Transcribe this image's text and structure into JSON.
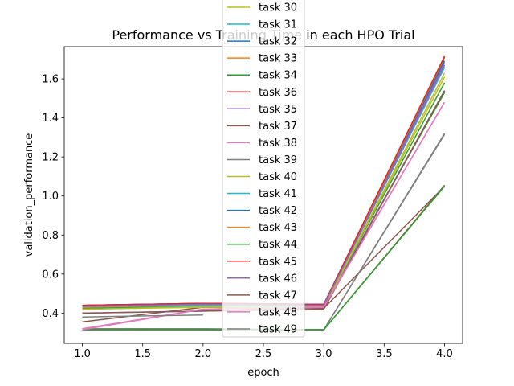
{
  "chart_data": {
    "type": "line",
    "title": "Performance vs Training Time in each HPO Trial",
    "xlabel": "epoch",
    "ylabel": "validation_performance",
    "xlim": [
      0.85,
      4.15
    ],
    "ylim": [
      0.245,
      1.765
    ],
    "xticks": [
      "1.0",
      "1.5",
      "2.0",
      "2.5",
      "3.0",
      "3.5",
      "4.0"
    ],
    "yticks": [
      "0.4",
      "0.6",
      "0.8",
      "1.0",
      "1.2",
      "1.4",
      "1.6"
    ],
    "grid": false,
    "legend_position": "top-center",
    "x": [
      1,
      2,
      3,
      4
    ],
    "series": [
      {
        "name": "task 30",
        "color": "#bcbd22",
        "values": [
          0.42,
          0.435,
          0.43,
          1.63
        ]
      },
      {
        "name": "task 31",
        "color": "#17becf",
        "values": [
          0.43,
          0.44,
          0.44,
          1.66
        ]
      },
      {
        "name": "task 32",
        "color": "#1f77b4",
        "values": [
          0.44,
          0.45,
          0.445,
          1.69
        ]
      },
      {
        "name": "task 33",
        "color": "#ff7f0e",
        "values": [
          0.43,
          0.445,
          0.44,
          1.71
        ]
      },
      {
        "name": "task 34",
        "color": "#2ca02c",
        "values": [
          0.425,
          0.44,
          0.435,
          1.58
        ]
      },
      {
        "name": "task 36",
        "color": "#d62728",
        "values": [
          0.44,
          0.45,
          0.445,
          1.715
        ]
      },
      {
        "name": "task 35",
        "color": "#9467bd",
        "values": [
          0.435,
          0.445,
          0.44,
          1.68
        ]
      },
      {
        "name": "task 37",
        "color": "#8c564b",
        "values": [
          0.355,
          0.43,
          0.425,
          1.05
        ]
      },
      {
        "name": "task 38",
        "color": "#e377c2",
        "values": [
          0.32,
          0.42,
          0.435,
          1.48
        ]
      },
      {
        "name": "task 39",
        "color": "#7f7f7f",
        "values": [
          0.315,
          0.315,
          0.315,
          1.315
        ]
      },
      {
        "name": "task 40",
        "color": "#bcbd22",
        "values": [
          0.42,
          0.43,
          0.43,
          1.61
        ]
      },
      {
        "name": "task 41",
        "color": "#17becf",
        "values": [
          0.43,
          0.44,
          0.44,
          1.66
        ]
      },
      {
        "name": "task 42",
        "color": "#1f77b4",
        "values": [
          0.44,
          0.45,
          0.445,
          1.7
        ]
      },
      {
        "name": "task 43",
        "color": "#ff7f0e",
        "values": [
          0.43,
          0.445,
          0.44,
          1.71
        ]
      },
      {
        "name": "task 44",
        "color": "#2ca02c",
        "values": [
          0.315,
          0.315,
          0.315,
          1.05
        ]
      },
      {
        "name": "task 45",
        "color": "#d62728",
        "values": [
          0.44,
          0.45,
          0.445,
          1.715
        ]
      },
      {
        "name": "task 46",
        "color": "#9467bd",
        "values": [
          0.435,
          0.445,
          0.44,
          1.67
        ]
      },
      {
        "name": "task 47",
        "color": "#8c564b",
        "values": [
          0.4,
          0.41,
          0.42,
          1.54
        ]
      },
      {
        "name": "task 48",
        "color": "#e377c2",
        "values": [
          0.315,
          0.42,
          0.43,
          1.48
        ]
      },
      {
        "name": "task 49",
        "color": "#7f7f7f",
        "values": [
          0.38,
          0.39,
          null,
          null
        ]
      }
    ],
    "extra_lines": [
      {
        "color": "#7f7f7f",
        "values": [
          0.32,
          0.32,
          0.315,
          1.32
        ]
      },
      {
        "color": "#8c564b",
        "values": [
          0.315,
          0.315,
          0.315,
          1.055
        ]
      },
      {
        "color": "#2ca02c",
        "values": [
          0.43,
          0.44,
          0.435,
          1.53
        ]
      },
      {
        "color": "#9467bd",
        "values": [
          0.4,
          0.41,
          0.43,
          1.54
        ]
      }
    ]
  }
}
